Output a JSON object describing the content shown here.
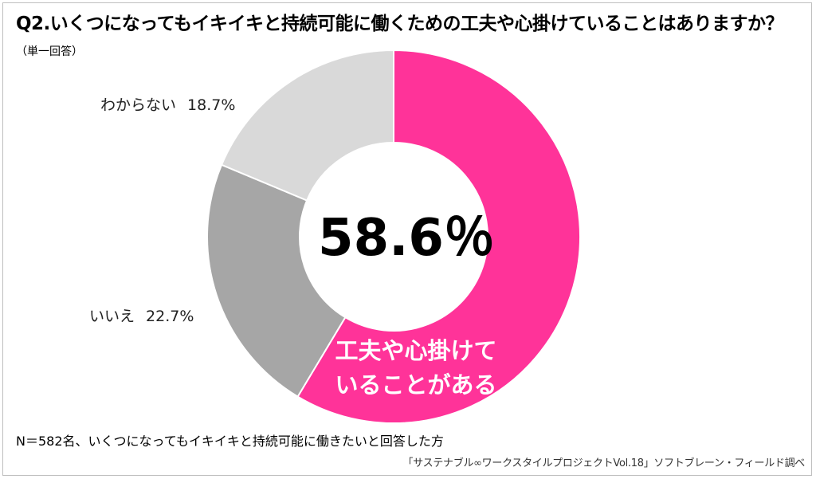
{
  "question": {
    "text": "Q2.いくつになってもイキイキと持続可能に働くための工夫や心掛けていることはありますか？",
    "note": "（単一回答）"
  },
  "chart_data": {
    "type": "pie",
    "variant": "donut",
    "categories": [
      "工夫や心掛けていることがある",
      "いいえ",
      "わからない"
    ],
    "values": [
      58.6,
      22.7,
      18.7
    ],
    "unit": "%",
    "colors": [
      "#ff3399",
      "#a6a6a6",
      "#d9d9d9"
    ],
    "center_label": "58.6％",
    "labels": {
      "yes": {
        "line1": "工夫や心掛けて",
        "line2": "いることがある"
      },
      "no": {
        "name": "いいえ",
        "value": "22.7%"
      },
      "dontknow": {
        "name": "わからない",
        "value": "18.7%"
      }
    }
  },
  "footnote": "N＝582名、いくつになってもイキイキと持続可能に働きたいと回答した方",
  "source": "「サステナブル∞ワークスタイルプロジェクトVol.18」ソフトブレーン・フィールド調べ"
}
